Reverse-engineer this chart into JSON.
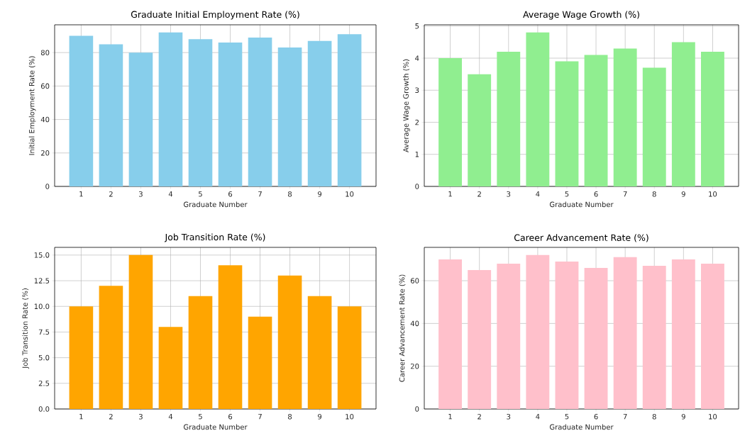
{
  "chart_data": [
    {
      "type": "bar",
      "title": "Graduate Initial Employment Rate (%)",
      "xlabel": "Graduate Number",
      "ylabel": "Initial Employment Rate (%)",
      "categories": [
        "1",
        "2",
        "3",
        "4",
        "5",
        "6",
        "7",
        "8",
        "9",
        "10"
      ],
      "values": [
        90,
        85,
        80,
        92,
        88,
        86,
        89,
        83,
        87,
        91
      ],
      "color": "#87ceeb",
      "ylim": [
        0,
        96.6
      ],
      "yticks": [
        0,
        20,
        40,
        60,
        80
      ],
      "grid": true
    },
    {
      "type": "bar",
      "title": "Average Wage Growth (%)",
      "xlabel": "Graduate Number",
      "ylabel": "Average Wage Growth (%)",
      "categories": [
        "1",
        "2",
        "3",
        "4",
        "5",
        "6",
        "7",
        "8",
        "9",
        "10"
      ],
      "values": [
        4.0,
        3.5,
        4.2,
        4.8,
        3.9,
        4.1,
        4.3,
        3.7,
        4.5,
        4.2
      ],
      "color": "#90ee90",
      "ylim": [
        0,
        5.04
      ],
      "yticks": [
        0,
        1,
        2,
        3,
        4,
        5
      ],
      "grid": true
    },
    {
      "type": "bar",
      "title": "Job Transition Rate (%)",
      "xlabel": "Graduate Number",
      "ylabel": "Job Transition Rate (%)",
      "categories": [
        "1",
        "2",
        "3",
        "4",
        "5",
        "6",
        "7",
        "8",
        "9",
        "10"
      ],
      "values": [
        10,
        12,
        15,
        8,
        11,
        14,
        9,
        13,
        11,
        10
      ],
      "color": "#ffa500",
      "ylim": [
        0,
        15.75
      ],
      "yticks": [
        {
          "value": 0,
          "label": "0.0"
        },
        {
          "value": 2.5,
          "label": "2.5"
        },
        {
          "value": 5,
          "label": "5.0"
        },
        {
          "value": 7.5,
          "label": "7.5"
        },
        {
          "value": 10,
          "label": "10.0"
        },
        {
          "value": 12.5,
          "label": "12.5"
        },
        {
          "value": 15,
          "label": "15.0"
        }
      ],
      "grid": true
    },
    {
      "type": "bar",
      "title": "Career Advancement Rate (%)",
      "xlabel": "Graduate Number",
      "ylabel": "Career Advancement Rate (%)",
      "categories": [
        "1",
        "2",
        "3",
        "4",
        "5",
        "6",
        "7",
        "8",
        "9",
        "10"
      ],
      "values": [
        70,
        65,
        68,
        72,
        69,
        66,
        71,
        67,
        70,
        68
      ],
      "color": "#ffc0cb",
      "ylim": [
        0,
        75.6
      ],
      "yticks": [
        0,
        20,
        40,
        60
      ],
      "grid": true
    }
  ]
}
